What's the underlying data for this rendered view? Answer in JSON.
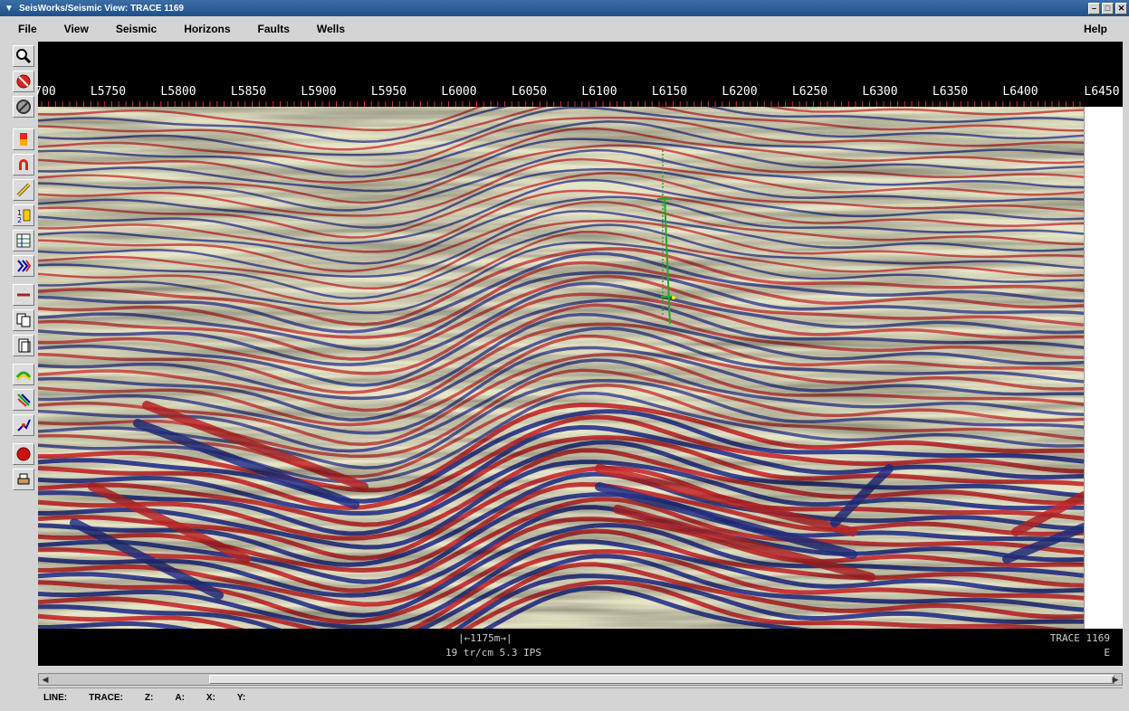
{
  "window": {
    "title": "SeisWorks/Seismic View: TRACE 1169",
    "menu_icon": "window-menu-icon",
    "controls": [
      "minimize-icon",
      "maximize-icon",
      "close-icon"
    ]
  },
  "menu": {
    "file": "File",
    "view": "View",
    "seismic": "Seismic",
    "horizons": "Horizons",
    "faults": "Faults",
    "wells": "Wells",
    "help": "Help"
  },
  "toolbar": {
    "tools": [
      "zoom-icon",
      "cancel-icon",
      "no-entry-icon",
      "color-bar-icon",
      "magnet-icon",
      "pencil-icon",
      "numbered-list-icon",
      "grid-icon",
      "chevron-stack-icon",
      "horizontal-line-icon",
      "copy-icon",
      "page-icon",
      "horizon-curve-icon",
      "fault-lines-icon",
      "pick-tool-icon",
      "record-icon",
      "print-icon"
    ]
  },
  "axis": {
    "top_labels": [
      "700",
      "L5750",
      "L5800",
      "L5850",
      "L5900",
      "L5950",
      "L6000",
      "L6050",
      "L6100",
      "L6150",
      "L6200",
      "L6250",
      "L6300",
      "L6350",
      "L6400",
      "L6450"
    ]
  },
  "bottom": {
    "scale": "1175m",
    "scale_text": "19 tr/cm 5.3 IPS",
    "trace": "TRACE 1169",
    "direction": "E"
  },
  "status": {
    "line": "LINE:",
    "trace": "TRACE:",
    "z": "Z:",
    "a": "A:",
    "x": "X:",
    "y": "Y:"
  },
  "colors": {
    "positive": "#c8282a",
    "negative": "#26328c",
    "background": "#e8e6c8",
    "well": "#22aa22"
  }
}
